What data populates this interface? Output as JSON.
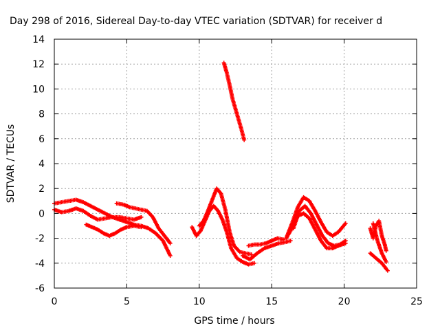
{
  "chart_data": {
    "type": "scatter",
    "title": "Day 298 of 2016, Sidereal Day-to-day VTEC variation (SDTVAR) for receiver d",
    "xlabel": "GPS time / hours",
    "ylabel": "SDTVAR / TECUs",
    "xlim": [
      0,
      25
    ],
    "ylim": [
      -6,
      14
    ],
    "xticks": [
      "0",
      "5",
      "10",
      "15",
      "20",
      "25"
    ],
    "yticks": [
      "-6",
      "-4",
      "-2",
      "0",
      "2",
      "4",
      "6",
      "8",
      "10",
      "12",
      "14"
    ],
    "grid": true,
    "marker": "+",
    "color": "#ff0000",
    "traces": [
      {
        "x": [
          0.0,
          0.5,
          1.0,
          1.5,
          2.0,
          2.5,
          3.0,
          3.5,
          4.0,
          4.5,
          5.0,
          5.5,
          6.0,
          6.5,
          7.0,
          7.5,
          8.0
        ],
        "y": [
          0.8,
          0.9,
          1.0,
          1.1,
          0.9,
          0.6,
          0.3,
          0.0,
          -0.3,
          -0.5,
          -0.7,
          -0.9,
          -1.0,
          -1.2,
          -1.6,
          -2.2,
          -3.4
        ]
      },
      {
        "x": [
          0.0,
          0.5,
          1.0,
          1.5,
          2.0,
          2.5,
          3.0,
          3.5,
          4.0,
          4.5,
          5.0,
          5.5,
          6.0
        ],
        "y": [
          0.3,
          0.1,
          0.2,
          0.4,
          0.2,
          -0.2,
          -0.5,
          -0.4,
          -0.3,
          -0.3,
          -0.4,
          -0.5,
          -0.3
        ]
      },
      {
        "x": [
          2.2,
          2.6,
          3.0,
          3.4,
          3.8,
          4.2,
          4.6,
          5.0,
          5.5,
          6.0
        ],
        "y": [
          -0.9,
          -1.1,
          -1.3,
          -1.6,
          -1.8,
          -1.6,
          -1.3,
          -1.1,
          -1.0,
          -1.1
        ]
      },
      {
        "x": [
          4.3,
          4.8,
          5.2,
          5.6,
          6.0,
          6.4,
          6.8,
          7.2,
          7.6,
          8.0
        ],
        "y": [
          0.8,
          0.7,
          0.5,
          0.4,
          0.3,
          0.2,
          -0.3,
          -1.2,
          -1.8,
          -2.4
        ]
      },
      {
        "x": [
          9.5,
          9.8,
          10.1,
          10.4,
          10.7,
          11.0,
          11.3,
          11.6,
          11.9,
          12.2,
          12.6,
          13.0,
          13.4,
          13.8
        ],
        "y": [
          -1.1,
          -1.8,
          -1.4,
          -0.6,
          0.2,
          0.6,
          0.2,
          -0.5,
          -1.5,
          -2.8,
          -3.6,
          -3.9,
          -4.1,
          -4.0
        ]
      },
      {
        "x": [
          10.0,
          10.3,
          10.6,
          10.9,
          11.2,
          11.5,
          11.8,
          12.1,
          12.4,
          12.8,
          13.2,
          13.6
        ],
        "y": [
          -1.0,
          -0.6,
          0.2,
          1.1,
          2.0,
          1.6,
          0.3,
          -1.5,
          -2.6,
          -3.1,
          -3.2,
          -3.3
        ]
      },
      {
        "x": [
          11.7,
          11.9,
          12.1,
          12.3,
          12.6,
          12.9,
          13.1
        ],
        "y": [
          12.1,
          11.3,
          10.3,
          9.2,
          8.0,
          6.8,
          5.9
        ]
      },
      {
        "x": [
          13.0,
          13.5,
          14.0,
          14.5,
          15.0,
          15.5,
          16.0,
          16.3
        ],
        "y": [
          -3.4,
          -3.7,
          -3.2,
          -2.8,
          -2.6,
          -2.4,
          -2.3,
          -2.2
        ]
      },
      {
        "x": [
          13.4,
          13.8,
          14.2,
          14.6,
          15.0,
          15.4,
          15.8
        ],
        "y": [
          -2.6,
          -2.5,
          -2.5,
          -2.4,
          -2.2,
          -2.0,
          -2.1
        ]
      },
      {
        "x": [
          16.0,
          16.4,
          16.8,
          17.2,
          17.6,
          18.0,
          18.4,
          18.8,
          19.2,
          19.6,
          20.1
        ],
        "y": [
          -2.0,
          -0.8,
          0.5,
          1.3,
          1.0,
          0.2,
          -0.7,
          -1.5,
          -1.8,
          -1.5,
          -0.8
        ]
      },
      {
        "x": [
          16.0,
          16.4,
          16.8,
          17.2,
          17.6,
          18.0,
          18.4,
          18.8,
          19.2,
          19.6,
          20.1
        ],
        "y": [
          -2.0,
          -1.2,
          -0.2,
          0.0,
          -0.4,
          -1.3,
          -2.2,
          -2.8,
          -2.8,
          -2.6,
          -2.4
        ]
      },
      {
        "x": [
          16.5,
          16.9,
          17.3,
          17.7,
          18.1,
          18.5,
          18.9,
          19.3,
          19.7,
          20.1
        ],
        "y": [
          -1.2,
          0.2,
          0.6,
          0.0,
          -0.9,
          -1.8,
          -2.4,
          -2.6,
          -2.5,
          -2.2
        ]
      },
      {
        "x": [
          21.8,
          22.0,
          22.2,
          22.4,
          22.6,
          22.8,
          22.9
        ],
        "y": [
          -1.2,
          -2.0,
          -1.0,
          -0.6,
          -1.8,
          -2.5,
          -3.0
        ]
      },
      {
        "x": [
          21.8,
          22.1,
          22.4,
          22.6,
          22.8,
          23.0
        ],
        "y": [
          -3.2,
          -3.5,
          -3.8,
          -4.0,
          -4.3,
          -4.6
        ]
      },
      {
        "x": [
          22.0,
          22.3,
          22.6,
          22.9
        ],
        "y": [
          -0.8,
          -2.2,
          -3.2,
          -3.9
        ]
      }
    ]
  }
}
